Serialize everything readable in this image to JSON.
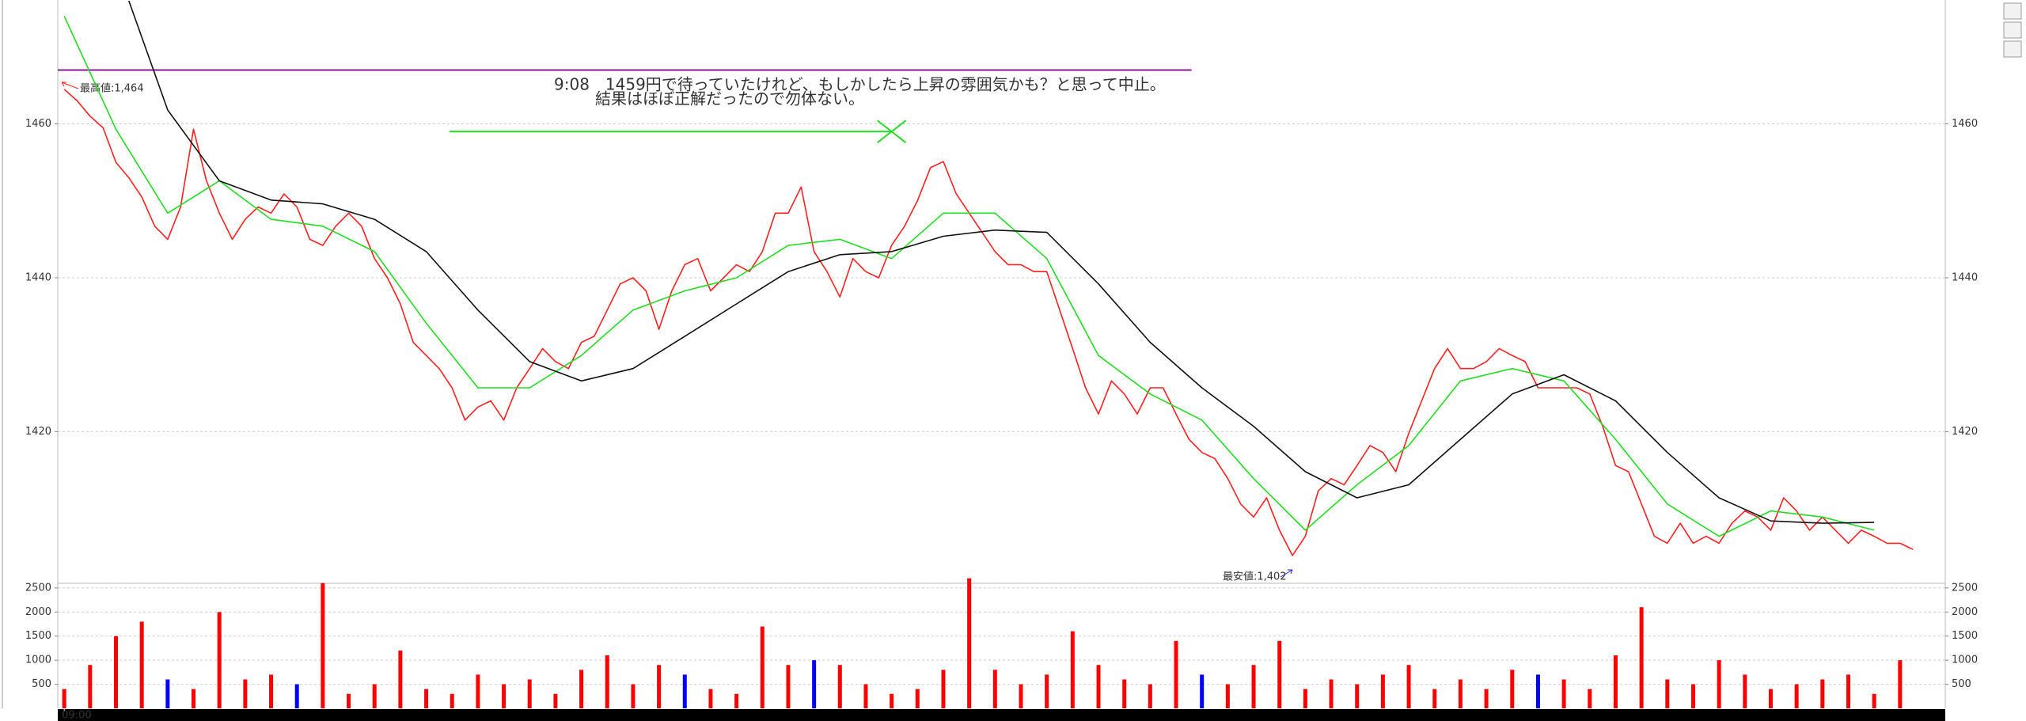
{
  "chart_data": [
    {
      "type": "line",
      "xlim": [
        -0.5,
        145.5
      ],
      "ylim": [
        1400.5,
        1476.1
      ],
      "yticks": [
        1420,
        1440,
        1460
      ],
      "grid": true,
      "series": [
        {
          "color": "#ff2020",
          "x": [
            0,
            1,
            2,
            3,
            4,
            5,
            6,
            7,
            8,
            9,
            10,
            11,
            12,
            13,
            14,
            15,
            16,
            17,
            18,
            19,
            20,
            21,
            22,
            23,
            24,
            25,
            26,
            27,
            28,
            29,
            30,
            31,
            32,
            33,
            34,
            35,
            36,
            37,
            38,
            39,
            40,
            41,
            42,
            43,
            44,
            45,
            46,
            47,
            48,
            49,
            50,
            51,
            52,
            53,
            54,
            55,
            56,
            57,
            58,
            59,
            60,
            61,
            62,
            63,
            64,
            65,
            66,
            67,
            68,
            69,
            70,
            71,
            72,
            73,
            74,
            75,
            76,
            77,
            78,
            79,
            80,
            81,
            82,
            83,
            84,
            85,
            86,
            87,
            88,
            89,
            90,
            91,
            92,
            93,
            94,
            95,
            96,
            97,
            98,
            99,
            100,
            101,
            102,
            103,
            104,
            105,
            106,
            107,
            108,
            109,
            110,
            111,
            112,
            113,
            114,
            115,
            116,
            117,
            118,
            119,
            120,
            121,
            122,
            123,
            124,
            125,
            126,
            127,
            128,
            129,
            130,
            131,
            132,
            133,
            134,
            135,
            136,
            137,
            138,
            139,
            140,
            141,
            142,
            143
          ],
          "values": [
            1464.5,
            1463,
            1461,
            1459.5,
            1455,
            1453,
            1450.5,
            1446.7,
            1445,
            1449.2,
            1459.3,
            1452.6,
            1448.4,
            1445,
            1447.6,
            1449.2,
            1448.4,
            1450.9,
            1449.2,
            1445,
            1444.2,
            1446.7,
            1448.4,
            1446.7,
            1442.5,
            1440,
            1436.6,
            1431.6,
            1429.9,
            1428.2,
            1425.7,
            1421.5,
            1423.2,
            1424,
            1421.5,
            1425.7,
            1428.2,
            1430.8,
            1429.1,
            1428.2,
            1431.6,
            1432.4,
            1435.8,
            1439.2,
            1440,
            1438.3,
            1433.3,
            1438.3,
            1441.7,
            1442.5,
            1438.3,
            1440,
            1441.7,
            1440.8,
            1443.4,
            1448.4,
            1448.4,
            1451.8,
            1443.4,
            1440.8,
            1437.5,
            1442.5,
            1440.8,
            1440,
            1444.2,
            1446.7,
            1450,
            1454.3,
            1455.1,
            1450.9,
            1448.4,
            1445.9,
            1443.4,
            1441.7,
            1441.7,
            1440.8,
            1440.8,
            1435.8,
            1430.8,
            1425.7,
            1422.3,
            1426.6,
            1424.9,
            1422.3,
            1425.7,
            1425.7,
            1422.3,
            1419,
            1417.3,
            1416.5,
            1413.9,
            1410.6,
            1408.9,
            1411.4,
            1407.2,
            1403.9,
            1406.4,
            1412.3,
            1413.9,
            1413.1,
            1415.6,
            1418.2,
            1417.3,
            1414.8,
            1419.8,
            1424,
            1428.2,
            1430.8,
            1428.2,
            1428.2,
            1429.1,
            1430.8,
            1429.9,
            1429.1,
            1425.7,
            1425.7,
            1425.7,
            1425.7,
            1424.9,
            1420.7,
            1415.6,
            1414.8,
            1410.6,
            1406.4,
            1405.5,
            1408.1,
            1405.5,
            1406.4,
            1405.5,
            1408.1,
            1409.7,
            1408.9,
            1407.2,
            1411.4,
            1409.7,
            1407.2,
            1408.9,
            1407.2,
            1405.5,
            1407.2,
            1406.4,
            1405.5,
            1405.5,
            1404.7
          ]
        },
        {
          "color": "#22dd22",
          "x": [
            0,
            4,
            8,
            12,
            16,
            20,
            24,
            28,
            32,
            36,
            40,
            44,
            48,
            52,
            56,
            60,
            64,
            68,
            72,
            76,
            80,
            84,
            88,
            92,
            96,
            100,
            104,
            108,
            112,
            116,
            120,
            124,
            128,
            132,
            136,
            140
          ],
          "values": [
            1474,
            1459.3,
            1448.4,
            1452.6,
            1447.6,
            1446.7,
            1443.4,
            1434.1,
            1425.7,
            1425.7,
            1429.9,
            1435.8,
            1438.3,
            1440,
            1444.2,
            1445,
            1442.5,
            1448.4,
            1448.4,
            1442.5,
            1429.9,
            1424.9,
            1421.5,
            1413.9,
            1407.2,
            1413.1,
            1418.2,
            1426.6,
            1428.2,
            1426.6,
            1419,
            1410.6,
            1406.4,
            1409.7,
            1408.9,
            1407.2
          ]
        },
        {
          "color": "#111111",
          "x": [
            5,
            8,
            12,
            16,
            20,
            24,
            28,
            32,
            36,
            40,
            44,
            48,
            52,
            56,
            60,
            64,
            68,
            72,
            76,
            80,
            84,
            88,
            92,
            96,
            100,
            104,
            108,
            112,
            116,
            120,
            124,
            128,
            132,
            136,
            140
          ],
          "values": [
            1476,
            1461.8,
            1452.6,
            1450.1,
            1449.6,
            1447.6,
            1443.4,
            1435.8,
            1429.1,
            1426.6,
            1428.2,
            1432.4,
            1436.6,
            1440.8,
            1443,
            1443.4,
            1445.4,
            1446.2,
            1445.9,
            1439.2,
            1431.6,
            1425.7,
            1420.7,
            1414.8,
            1411.4,
            1413.1,
            1419,
            1424.9,
            1427.4,
            1424,
            1417.3,
            1411.4,
            1408.4,
            1408.1,
            1408.2
          ]
        }
      ],
      "hlines": [
        {
          "value": 1467,
          "x": [
            -0.5,
            87.2
          ],
          "color": "#8a1a9a"
        },
        {
          "value": 1459,
          "x": [
            29.8,
            64
          ],
          "color": "#22dd22"
        }
      ],
      "annotations": [
        {
          "text": "9:08　1459円で待っていたけれど、もしかしたら上昇の雰囲気かも？と思って中止。",
          "color": "#22cc22"
        },
        {
          "text": "結果はほぼ正解だったので勿体ない。",
          "color": "#ee22ee"
        },
        {
          "text": "最高値:1,464",
          "color": "#ff2020"
        },
        {
          "text": "最安値:1,402",
          "color": "#2222ee"
        }
      ]
    },
    {
      "type": "bar",
      "xlim": [
        -0.25,
        72.75
      ],
      "ylim": [
        0,
        2580
      ],
      "yticks": [
        500,
        1000,
        1500,
        2000,
        2500
      ],
      "grid": true,
      "xticks": [
        {
          "value": 0,
          "label": "09:00"
        }
      ],
      "values": [
        400,
        900,
        1500,
        1800,
        600,
        400,
        2000,
        600,
        700,
        500,
        2600,
        300,
        500,
        1200,
        400,
        300,
        700,
        500,
        600,
        300,
        800,
        1100,
        500,
        900,
        700,
        400,
        300,
        1700,
        900,
        1000,
        900,
        500,
        300,
        400,
        800,
        2700,
        800,
        500,
        700,
        1600,
        900,
        600,
        500,
        1400,
        700,
        500,
        900,
        1400,
        400,
        600,
        500,
        700,
        900,
        400,
        600,
        400,
        800,
        700,
        600,
        400,
        1100,
        2100,
        600,
        500,
        1000,
        700,
        400,
        500,
        600,
        700,
        300,
        1000
      ],
      "colors": [
        "#ff0000",
        "#ff0000",
        "#ff0000",
        "#ff0000",
        "#0000ff",
        "#ff0000",
        "#ff0000",
        "#ff0000",
        "#ff0000",
        "#0000ff",
        "#ff0000",
        "#ff0000",
        "#ff0000",
        "#ff0000",
        "#ff0000",
        "#ff0000",
        "#ff0000",
        "#ff0000",
        "#ff0000",
        "#ff0000",
        "#ff0000",
        "#ff0000",
        "#ff0000",
        "#ff0000",
        "#0000ff",
        "#ff0000",
        "#ff0000",
        "#ff0000",
        "#ff0000",
        "#0000ff",
        "#ff0000",
        "#ff0000",
        "#ff0000",
        "#ff0000",
        "#ff0000",
        "#ff0000",
        "#ff0000",
        "#ff0000",
        "#ff0000",
        "#ff0000",
        "#ff0000",
        "#ff0000",
        "#ff0000",
        "#ff0000",
        "#0000ff",
        "#ff0000",
        "#ff0000",
        "#ff0000",
        "#ff0000",
        "#ff0000",
        "#ff0000",
        "#ff0000",
        "#ff0000",
        "#ff0000",
        "#ff0000",
        "#ff0000",
        "#ff0000",
        "#0000ff",
        "#ff0000",
        "#ff0000",
        "#ff0000",
        "#ff0000",
        "#ff0000",
        "#ff0000",
        "#ff0000",
        "#ff0000",
        "#ff0000",
        "#ff0000",
        "#ff0000",
        "#ff0000",
        "#ff0000",
        "#ff0000"
      ]
    }
  ]
}
